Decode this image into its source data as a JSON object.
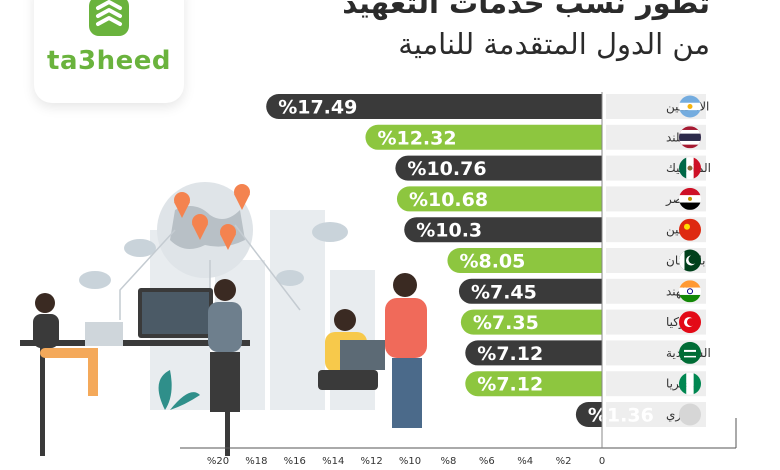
{
  "header": {
    "logo_text": "ta3heed",
    "title_line1": "تطور نسب خدمات التعهيد",
    "title_line2": "من الدول المتقدمة للنامية"
  },
  "chart_data": {
    "type": "bar",
    "orientation": "horizontal",
    "direction": "rtl",
    "categories": [
      "الارجنتين",
      "تايلند",
      "المكسيك",
      "مصر",
      "الصين",
      "باكستان",
      "الهند",
      "تركيا",
      "السعودية",
      "نيجيريا",
      "أخري"
    ],
    "values": [
      17.49,
      12.32,
      10.76,
      10.68,
      10.3,
      8.05,
      7.45,
      7.35,
      7.12,
      7.12,
      1.36
    ],
    "value_labels": [
      "%17.49",
      "%12.32",
      "%10.76",
      "%10.68",
      "%10.3",
      "%8.05",
      "%7.45",
      "%7.35",
      "%7.12",
      "%7.12",
      "%1.36"
    ],
    "bar_colors": [
      "#3a3a3a",
      "#8dc63f",
      "#3a3a3a",
      "#8dc63f",
      "#3a3a3a",
      "#8dc63f",
      "#3a3a3a",
      "#8dc63f",
      "#3a3a3a",
      "#8dc63f",
      "#3a3a3a"
    ],
    "flags": [
      "argentina-flag",
      "thailand-flag",
      "mexico-flag",
      "egypt-flag",
      "china-flag",
      "pakistan-flag",
      "india-flag",
      "turkey-flag",
      "saudi-flag",
      "nigeria-flag",
      "other-flag"
    ],
    "xlim": [
      0,
      20
    ],
    "ticks": [
      0,
      2,
      4,
      6,
      8,
      10,
      12,
      14,
      16,
      18,
      20
    ],
    "tick_labels": [
      "0",
      "%2",
      "%4",
      "%6",
      "%8",
      "%10",
      "%12",
      "%14",
      "%16",
      "%18",
      "%20"
    ],
    "title": "",
    "xlabel": "",
    "ylabel": ""
  },
  "colors": {
    "dark": "#3a3a3a",
    "green": "#8dc63f",
    "label_bg": "#eeeeee",
    "logo_green": "#6ab33d"
  }
}
